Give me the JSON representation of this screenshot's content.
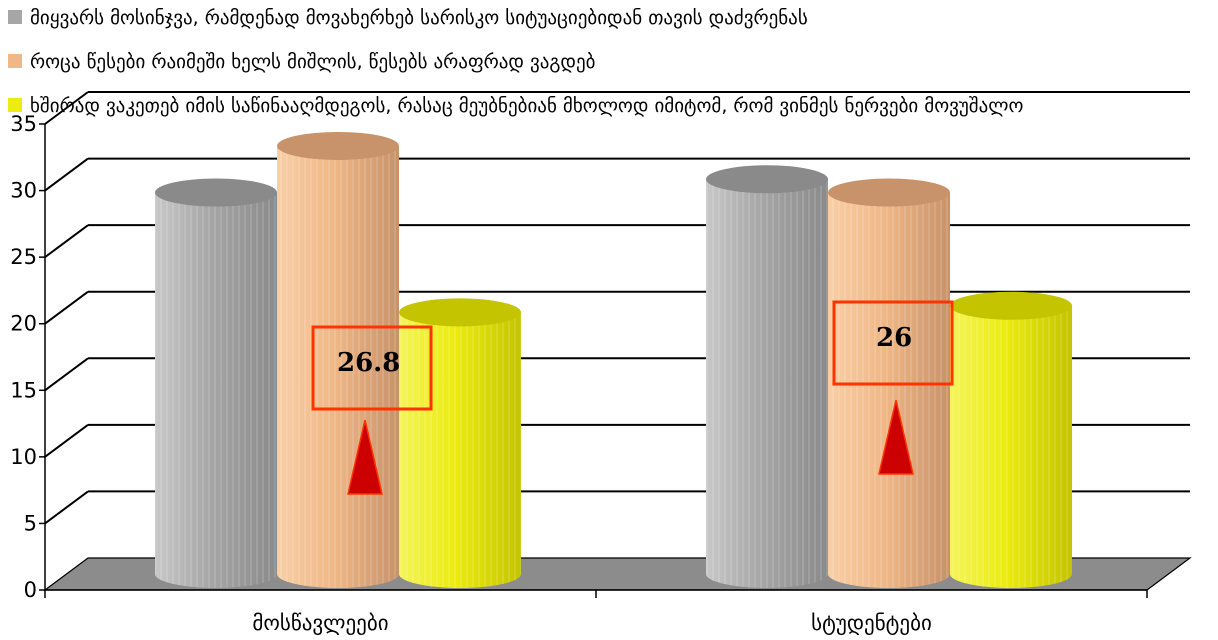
{
  "chart_data": {
    "type": "bar",
    "style": "3d-cylinder",
    "categories": [
      "მოსწავლეები",
      "სტუდენტები"
    ],
    "series": [
      {
        "name": "მიყვარს მოსინჯვა, რამდენად მოვახერხებ სარისკო სიტუაციებიდან თავის დაძვრენას",
        "values": [
          28.5,
          29.5
        ],
        "color": "#a6a6a6",
        "colorDark": "#8a8a8a",
        "colorLight": "#c8c8c8"
      },
      {
        "name": "როცა წესები რაიმეში ხელს მიშლის, წესებს არაფრად ვაგდებ",
        "values": [
          32,
          28.5
        ],
        "color": "#f0b887",
        "colorDark": "#c8926a",
        "colorLight": "#f8cfa6"
      },
      {
        "name": "ხშირად ვაკეთებ იმის საწინააღმდეგოს, რასაც მეუბნებიან მხოლოდ იმიტომ, რომ ვინმეს ნერვები მოვუშალო",
        "values": [
          19.5,
          20
        ],
        "color": "#ecec10",
        "colorDark": "#c4c400",
        "colorLight": "#f4f45a"
      }
    ],
    "ylim": [
      0,
      35
    ],
    "yticks": [
      "0",
      "5",
      "10",
      "15",
      "20",
      "25",
      "30",
      "35"
    ],
    "grid": true,
    "legend_position": "top",
    "annotations": [
      {
        "category": "მოსწავლეები",
        "text": "26.8",
        "color": "#ff3300"
      },
      {
        "category": "სტუდენტები",
        "text": "26",
        "color": "#ff3300"
      }
    ]
  }
}
